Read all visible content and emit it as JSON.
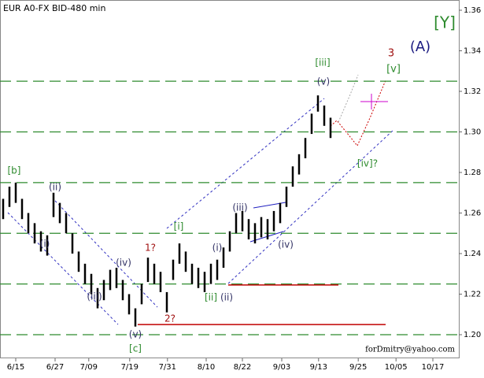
{
  "chart_data": {
    "type": "hilo",
    "title": "EUR A0-FX BID-480 min",
    "footer": "forDmitry@yahoo.com",
    "color": "#000000",
    "high": [
      1.267,
      1.273,
      1.275,
      1.267,
      1.26,
      1.255,
      1.251,
      1.249,
      1.27,
      1.265,
      1.26,
      1.25,
      1.241,
      1.235,
      1.23,
      1.223,
      1.227,
      1.232,
      1.233,
      1.227,
      1.22,
      1.213,
      1.225,
      1.238,
      1.235,
      1.231,
      1.221,
      1.237,
      1.245,
      1.241,
      1.235,
      1.233,
      1.231,
      1.235,
      1.237,
      1.243,
      1.251,
      1.26,
      1.261,
      1.257,
      1.255,
      1.258,
      1.257,
      1.261,
      1.265,
      1.273,
      1.283,
      1.289,
      1.297,
      1.309,
      1.318,
      1.313,
      1.307
    ],
    "low": [
      1.257,
      1.263,
      1.265,
      1.257,
      1.25,
      1.245,
      1.241,
      1.239,
      1.258,
      1.255,
      1.25,
      1.24,
      1.231,
      1.225,
      1.22,
      1.213,
      1.217,
      1.222,
      1.223,
      1.217,
      1.21,
      1.204,
      1.215,
      1.226,
      1.225,
      1.221,
      1.211,
      1.227,
      1.235,
      1.231,
      1.225,
      1.223,
      1.221,
      1.225,
      1.227,
      1.233,
      1.241,
      1.25,
      1.251,
      1.247,
      1.245,
      1.248,
      1.247,
      1.251,
      1.255,
      1.263,
      1.273,
      1.279,
      1.287,
      1.299,
      1.31,
      1.303,
      1.297
    ],
    "xlim": [
      -0.5,
      72.375
    ],
    "xticks": [
      {
        "value": 2,
        "label": "6/15"
      },
      {
        "value": 8.25,
        "label": "6/27"
      },
      {
        "value": 13.6,
        "label": "7/09"
      },
      {
        "value": 20.1,
        "label": "7/19"
      },
      {
        "value": 26.1,
        "label": "7/31"
      },
      {
        "value": 32.25,
        "label": "8/10"
      },
      {
        "value": 38,
        "label": "8/22"
      },
      {
        "value": 44.25,
        "label": "9/03"
      },
      {
        "value": 50.1,
        "label": "9/13"
      },
      {
        "value": 56.4,
        "label": "9/25"
      },
      {
        "value": 62.4,
        "label": "10/05"
      },
      {
        "value": 68.25,
        "label": "10/17"
      }
    ],
    "ylim": [
      1.1925,
      1.3656
    ],
    "yticks": [
      {
        "value": 1.2,
        "label": "1.20"
      },
      {
        "value": 1.22,
        "label": "1.22"
      },
      {
        "value": 1.24,
        "label": "1.24"
      },
      {
        "value": 1.26,
        "label": "1.26"
      },
      {
        "value": 1.28,
        "label": "1.28"
      },
      {
        "value": 1.3,
        "label": "1.30"
      },
      {
        "value": 1.32,
        "label": "1.32"
      },
      {
        "value": 1.34,
        "label": "1.34"
      },
      {
        "value": 1.36,
        "label": "1.36"
      }
    ],
    "levels": [
      1.325,
      1.3,
      1.275,
      1.25,
      1.225,
      1.2
    ],
    "level_color": "#2e8b2e",
    "red_levels": [
      1.2245,
      1.205
    ],
    "red_color": "#c00000",
    "annotations": [
      {
        "text": "[Y]",
        "color": "#2e8b2e"
      },
      {
        "text": "(A)",
        "color": "#1a1a80"
      },
      {
        "text": "3",
        "color": "#a01010"
      },
      {
        "text": "[v]",
        "color": "#2e8b2e"
      },
      {
        "text": "[iii]",
        "color": "#2e8b2e"
      },
      {
        "text": "(v)",
        "color": "#333366"
      },
      {
        "text": "[b]",
        "color": "#2e8b2e"
      },
      {
        "text": "(ii)",
        "color": "#333366"
      },
      {
        "text": "(i)",
        "color": "#333366"
      },
      {
        "text": "(iv)",
        "color": "#333366"
      },
      {
        "text": "(iii)",
        "color": "#333366"
      },
      {
        "text": "(v)",
        "color": "#333366"
      },
      {
        "text": "[c]",
        "color": "#2e8b2e"
      },
      {
        "text": "1?",
        "color": "#a01010"
      },
      {
        "text": "2?",
        "color": "#a01010"
      },
      {
        "text": "[i]",
        "color": "#2e8b2e"
      },
      {
        "text": "(i)",
        "color": "#333366"
      },
      {
        "text": "(iii)",
        "color": "#333366"
      },
      {
        "text": "(iv)",
        "color": "#333366"
      },
      {
        "text": "[ii]",
        "color": "#2e8b2e"
      },
      {
        "text": "(ii)",
        "color": "#333366"
      },
      {
        "text": "[iv]?",
        "color": "#2e8b2e"
      }
    ]
  }
}
